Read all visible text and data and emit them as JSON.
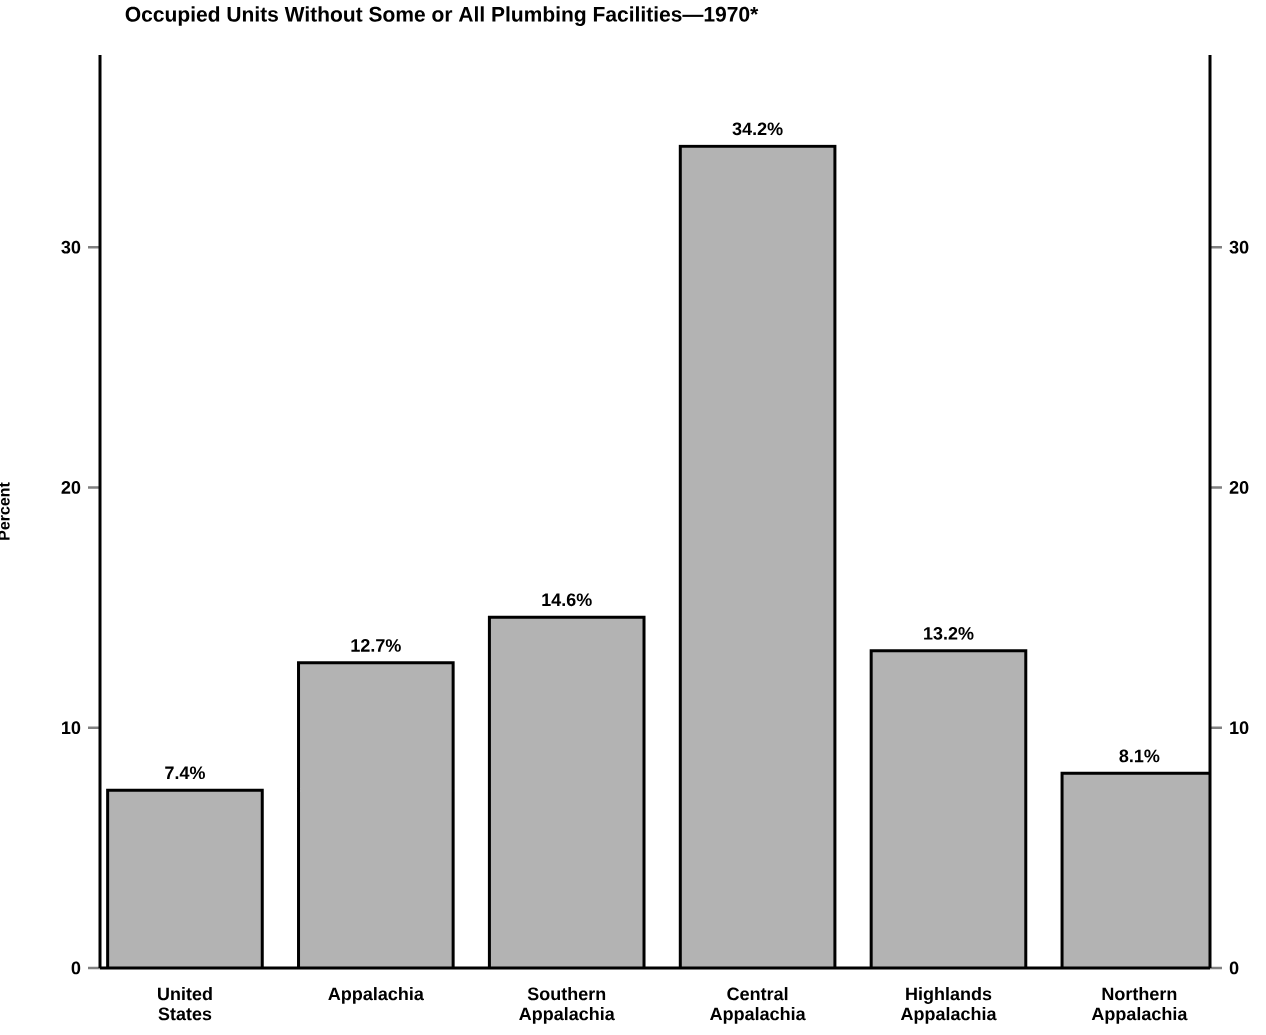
{
  "chart_data": {
    "type": "bar",
    "title": "Occupied Units Without Some or All Plumbing Facilities—1970*",
    "ylabel": "Percent",
    "categories": [
      "United States",
      "Appalachia",
      "Southern Appalachia",
      "Central Appalachia",
      "Highlands Appalachia",
      "Northern Appalachia"
    ],
    "values": [
      7.4,
      12.7,
      14.6,
      34.2,
      13.2,
      8.1
    ],
    "value_labels": [
      "7.4%",
      "12.7%",
      "14.6%",
      "34.2%",
      "13.2%",
      "8.1%"
    ],
    "color": "#b3b3b3",
    "ylim": [
      0,
      38
    ],
    "yticks": [
      0,
      10,
      20,
      30
    ],
    "y2lim": [
      0,
      38
    ],
    "y2ticks": [
      0,
      10,
      20,
      30
    ]
  }
}
